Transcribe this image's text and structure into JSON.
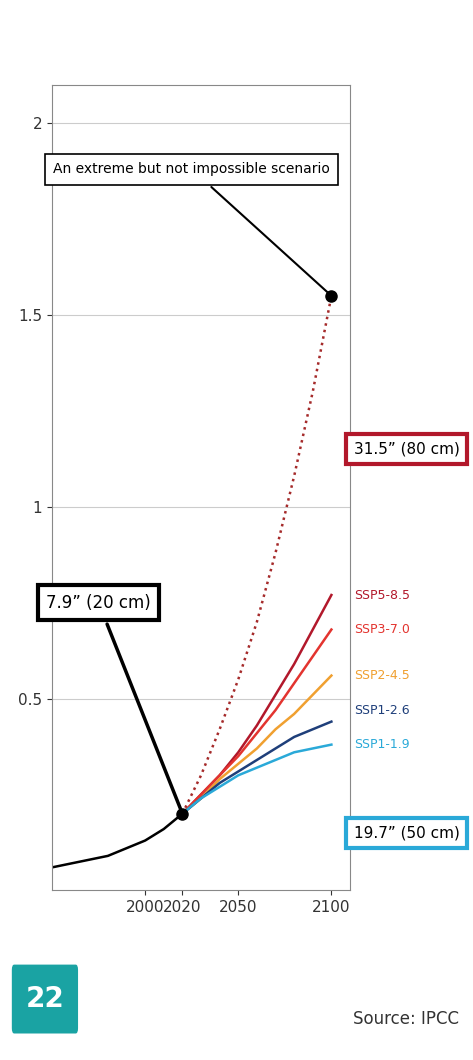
{
  "chart_data": {
    "type": "line",
    "x": [
      1950,
      1960,
      1970,
      1980,
      1990,
      2000,
      2010,
      2020,
      2030,
      2040,
      2050,
      2060,
      2070,
      2080,
      2090,
      2100
    ],
    "series": [
      {
        "color": "#000000",
        "line_style": "solid",
        "values": [
          0.06,
          0.07,
          0.08,
          0.09,
          0.11,
          0.13,
          0.16,
          0.2,
          null,
          null,
          null,
          null,
          null,
          null,
          null,
          null
        ]
      },
      {
        "name": "SSP5-8.5",
        "color": "#b2182b",
        "line_style": "solid",
        "values": [
          null,
          null,
          null,
          null,
          null,
          null,
          null,
          0.2,
          0.25,
          0.3,
          0.36,
          0.43,
          0.51,
          0.59,
          0.68,
          0.77
        ]
      },
      {
        "name": "SSP3-7.0",
        "color": "#e3342f",
        "line_style": "solid",
        "values": [
          null,
          null,
          null,
          null,
          null,
          null,
          null,
          0.2,
          0.25,
          0.3,
          0.35,
          0.41,
          0.47,
          0.54,
          0.61,
          0.68
        ]
      },
      {
        "name": "SSP2-4.5",
        "color": "#f0a030",
        "line_style": "solid",
        "values": [
          null,
          null,
          null,
          null,
          null,
          null,
          null,
          0.2,
          0.24,
          0.29,
          0.33,
          0.37,
          0.42,
          0.46,
          0.51,
          0.56
        ]
      },
      {
        "name": "SSP1-2.6",
        "color": "#1f3f7a",
        "line_style": "solid",
        "values": [
          null,
          null,
          null,
          null,
          null,
          null,
          null,
          0.2,
          0.24,
          0.28,
          0.31,
          0.34,
          0.37,
          0.4,
          0.42,
          0.44
        ]
      },
      {
        "name": "SSP1-1.9",
        "color": "#2aa9d8",
        "line_style": "solid",
        "values": [
          null,
          null,
          null,
          null,
          null,
          null,
          null,
          0.2,
          0.24,
          0.27,
          0.3,
          0.32,
          0.34,
          0.36,
          0.37,
          0.38
        ]
      },
      {
        "color": "#a52a2a",
        "line_style": "dotted",
        "values": [
          null,
          null,
          null,
          null,
          null,
          null,
          null,
          0.2,
          0.3,
          0.42,
          0.55,
          0.7,
          0.88,
          1.08,
          1.3,
          1.55
        ]
      }
    ],
    "xlim": [
      1950,
      2110
    ],
    "xticks": [
      2000,
      2020,
      2050,
      2100
    ],
    "ylim": [
      0,
      2.1
    ],
    "yticks": [
      0.5,
      1,
      1.5,
      2
    ],
    "grid": true,
    "annotations": [
      "7.9” (20 cm)",
      "An extreme but not impossible scenario",
      "31.5” (80 cm)",
      "19.7” (50 cm)"
    ],
    "source": "Source: IPCC",
    "badge": "22"
  }
}
